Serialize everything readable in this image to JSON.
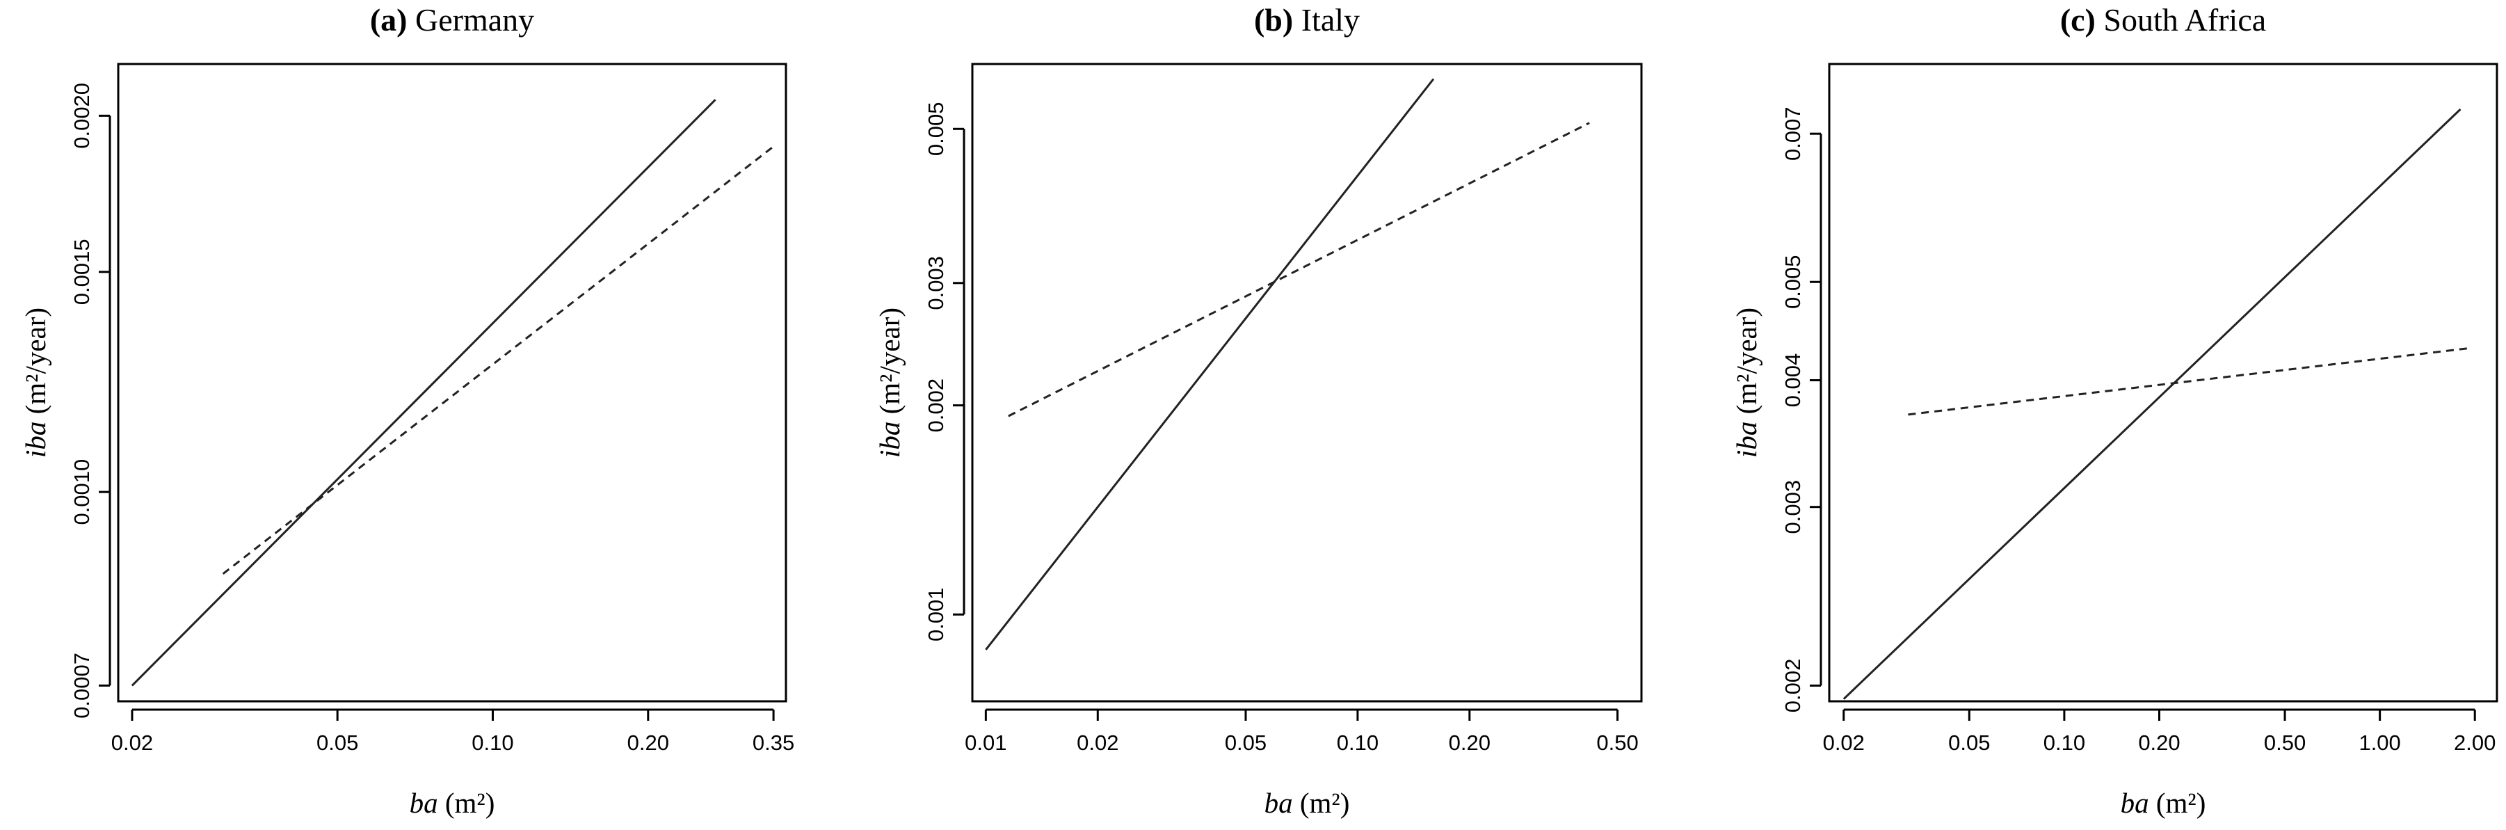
{
  "chart_data": [
    {
      "type": "line",
      "title_letter": "(a)",
      "title": "Germany",
      "xlabel_var": "ba",
      "xlabel_unit": "(m²)",
      "ylabel_var": "iba",
      "ylabel_unit": "(m²/year)",
      "x_scale": "log",
      "y_scale": "log",
      "xlim": [
        0.0188,
        0.37
      ],
      "ylim": [
        0.00068,
        0.0022
      ],
      "x_ticks": [
        0.02,
        0.05,
        0.1,
        0.2,
        0.35
      ],
      "x_tick_labels": [
        "0.02",
        "0.05",
        "0.10",
        "0.20",
        "0.35"
      ],
      "y_ticks": [
        0.0007,
        0.001,
        0.0015,
        0.002
      ],
      "y_tick_labels": [
        "0.0007",
        "0.0010",
        "0.0015",
        "0.0020"
      ],
      "grid": false,
      "series": [
        {
          "style": "solid",
          "x": [
            0.02,
            0.27
          ],
          "y": [
            0.0007,
            0.00206
          ]
        },
        {
          "style": "dashed",
          "x": [
            0.03,
            0.35
          ],
          "y": [
            0.00086,
            0.00189
          ]
        }
      ]
    },
    {
      "type": "line",
      "title_letter": "(b)",
      "title": "Italy",
      "xlabel_var": "ba",
      "xlabel_unit": "(m²)",
      "ylabel_var": "iba",
      "ylabel_unit": "(m²/year)",
      "x_scale": "log",
      "y_scale": "log",
      "xlim": [
        0.0092,
        0.58
      ],
      "ylim": [
        0.00075,
        0.0062
      ],
      "x_ticks": [
        0.01,
        0.02,
        0.05,
        0.1,
        0.2,
        0.5
      ],
      "x_tick_labels": [
        "0.01",
        "0.02",
        "0.05",
        "0.10",
        "0.20",
        "0.50"
      ],
      "y_ticks": [
        0.001,
        0.002,
        0.003,
        0.005
      ],
      "y_tick_labels": [
        "0.001",
        "0.002",
        "0.003",
        "0.005"
      ],
      "grid": false,
      "series": [
        {
          "style": "solid",
          "x": [
            0.01,
            0.16
          ],
          "y": [
            0.00089,
            0.0059
          ]
        },
        {
          "style": "dashed",
          "x": [
            0.0115,
            0.42
          ],
          "y": [
            0.00193,
            0.0051
          ]
        }
      ]
    },
    {
      "type": "line",
      "title_letter": "(c)",
      "title": "South Africa",
      "xlabel_var": "ba",
      "xlabel_unit": "(m²)",
      "ylabel_var": "iba",
      "ylabel_unit": "(m²/year)",
      "x_scale": "log",
      "y_scale": "log",
      "xlim": [
        0.018,
        2.35
      ],
      "ylim": [
        0.00193,
        0.0082
      ],
      "x_ticks": [
        0.02,
        0.05,
        0.1,
        0.2,
        0.5,
        1.0,
        2.0
      ],
      "x_tick_labels": [
        "0.02",
        "0.05",
        "0.10",
        "0.20",
        "0.50",
        "1.00",
        "2.00"
      ],
      "y_ticks": [
        0.002,
        0.003,
        0.004,
        0.005,
        0.007
      ],
      "y_tick_labels": [
        "0.002",
        "0.003",
        "0.004",
        "0.005",
        "0.007"
      ],
      "grid": false,
      "series": [
        {
          "style": "solid",
          "x": [
            0.02,
            1.8
          ],
          "y": [
            0.00194,
            0.0074
          ]
        },
        {
          "style": "dashed",
          "x": [
            0.032,
            1.9
          ],
          "y": [
            0.0037,
            0.0043
          ]
        }
      ]
    }
  ]
}
